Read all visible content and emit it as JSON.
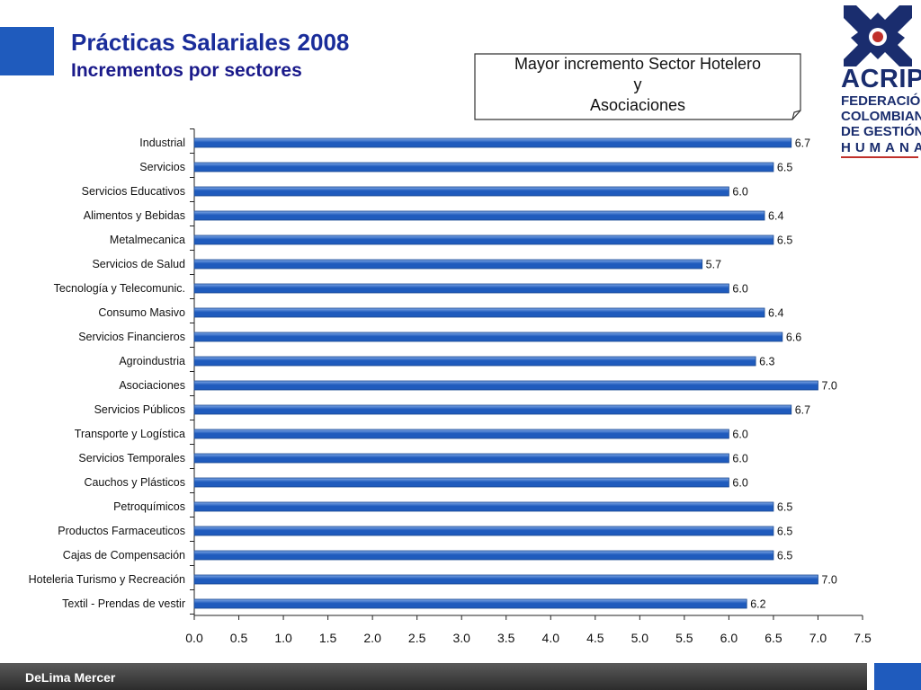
{
  "header": {
    "title": "Prácticas Salariales 2008",
    "subtitle": "Incrementos por sectores"
  },
  "callout": {
    "lines": [
      "Mayor incremento Sector Hotelero",
      "y",
      "Asociaciones"
    ]
  },
  "logo": {
    "word": "ACRIP",
    "lines": [
      "FEDERACIÓN",
      "COLOMBIANA",
      "DE GESTIÓN",
      "HUMANA"
    ]
  },
  "footer": {
    "text": "DeLima Mercer"
  },
  "colors": {
    "bar": "#1f5bbd",
    "bar_light": "#7fa8e6",
    "title": "#1a2d9a",
    "footer": "#3a3a3a",
    "accent_square": "#1f5bbd"
  },
  "chart_data": {
    "type": "bar",
    "orientation": "horizontal",
    "categories": [
      "Industrial",
      "Servicios",
      "Servicios Educativos",
      "Alimentos y Bebidas",
      "Metalmecanica",
      "Servicios de Salud",
      "Tecnología y Telecomunic.",
      "Consumo Masivo",
      "Servicios Financieros",
      "Agroindustria",
      "Asociaciones",
      "Servicios Públicos",
      "Transporte y Logística",
      "Servicios Temporales",
      "Cauchos y Plásticos",
      "Petroquímicos",
      "Productos Farmaceuticos",
      "Cajas de Compensación",
      "Hoteleria Turismo y Recreación",
      "Textil - Prendas de vestir"
    ],
    "values": [
      6.7,
      6.5,
      6.0,
      6.4,
      6.5,
      5.7,
      6.0,
      6.4,
      6.6,
      6.3,
      7.0,
      6.7,
      6.0,
      6.0,
      6.0,
      6.5,
      6.5,
      6.5,
      7.0,
      6.2
    ],
    "value_labels": [
      "6.7",
      "6.5",
      "6.0",
      "6.4",
      "6.5",
      "5.7",
      "6.0",
      "6.4",
      "6.6",
      "6.3",
      "7.0",
      "6.7",
      "6.0",
      "6.0",
      "6.0",
      "6.5",
      "6.5",
      "6.5",
      "7.0",
      "6.2"
    ],
    "xlim": [
      0,
      7.5
    ],
    "x_ticks": [
      "0.0",
      "0.5",
      "1.0",
      "1.5",
      "2.0",
      "2.5",
      "3.0",
      "3.5",
      "4.0",
      "4.5",
      "5.0",
      "5.5",
      "6.0",
      "6.5",
      "7.0",
      "7.5"
    ],
    "grid": false,
    "legend": "none"
  }
}
